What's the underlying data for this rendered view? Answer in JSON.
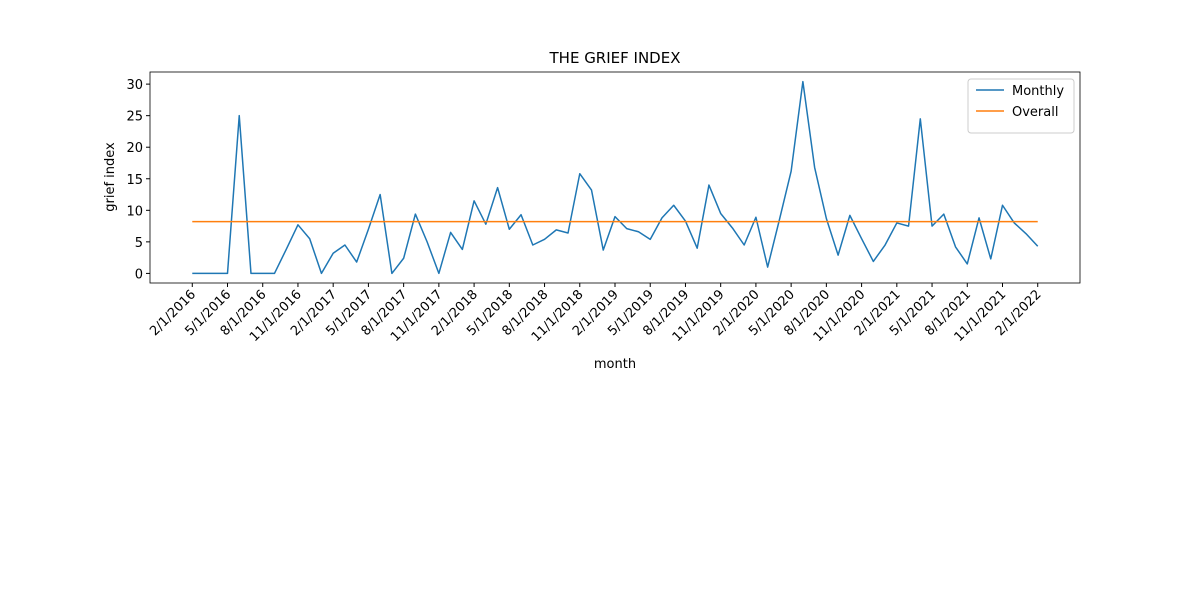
{
  "chart_data": {
    "type": "line",
    "title": "THE GRIEF INDEX",
    "x_label": "month",
    "y_label": "grief index",
    "categories": [
      "2/1/2016",
      null,
      null,
      "5/1/2016",
      null,
      null,
      "8/1/2016",
      null,
      null,
      "11/1/2016",
      null,
      null,
      "2/1/2017",
      null,
      null,
      "5/1/2017",
      null,
      null,
      "8/1/2017",
      null,
      null,
      "11/1/2017",
      null,
      null,
      "2/1/2018",
      null,
      null,
      "5/1/2018",
      null,
      null,
      "8/1/2018",
      null,
      null,
      "11/1/2018",
      null,
      null,
      "2/1/2019",
      null,
      null,
      "5/1/2019",
      null,
      null,
      "8/1/2019",
      null,
      null,
      "11/1/2019",
      null,
      null,
      "2/1/2020",
      null,
      null,
      "5/1/2020",
      null,
      null,
      "8/1/2020",
      null,
      null,
      "11/1/2020",
      null,
      null,
      "2/1/2021",
      null,
      null,
      "5/1/2021",
      null,
      null,
      "8/1/2021",
      null,
      null,
      "11/1/2021",
      null,
      null,
      "2/1/2022"
    ],
    "series": [
      {
        "name": "Monthly",
        "color": "#1f77b4",
        "values": [
          0,
          0,
          0,
          0,
          25,
          0,
          0,
          0,
          3.8,
          7.7,
          5.5,
          0,
          3.2,
          4.5,
          1.8,
          7,
          12.5,
          0,
          2.4,
          9.4,
          5,
          0,
          6.5,
          3.8,
          11.5,
          7.8,
          13.6,
          7,
          9.3,
          4.5,
          5.4,
          6.9,
          6.4,
          15.8,
          13.2,
          3.7,
          9,
          7.1,
          6.6,
          5.4,
          8.8,
          10.8,
          8.3,
          4,
          14,
          9.5,
          7.2,
          4.5,
          8.9,
          1,
          8.5,
          16.2,
          30.4,
          16.8,
          8.7,
          2.9,
          9.2,
          5.5,
          1.9,
          4.5,
          8,
          7.5,
          24.5,
          7.5,
          9.4,
          4.2,
          1.5,
          8.8,
          2.3,
          10.8,
          8,
          6.3,
          4.3
        ]
      },
      {
        "name": "Overall",
        "color": "#ff7f0e",
        "values": [
          8.2,
          8.2,
          8.2,
          8.2,
          8.2,
          8.2,
          8.2,
          8.2,
          8.2,
          8.2,
          8.2,
          8.2,
          8.2,
          8.2,
          8.2,
          8.2,
          8.2,
          8.2,
          8.2,
          8.2,
          8.2,
          8.2,
          8.2,
          8.2,
          8.2,
          8.2,
          8.2,
          8.2,
          8.2,
          8.2,
          8.2,
          8.2,
          8.2,
          8.2,
          8.2,
          8.2,
          8.2,
          8.2,
          8.2,
          8.2,
          8.2,
          8.2,
          8.2,
          8.2,
          8.2,
          8.2,
          8.2,
          8.2,
          8.2,
          8.2,
          8.2,
          8.2,
          8.2,
          8.2,
          8.2,
          8.2,
          8.2,
          8.2,
          8.2,
          8.2,
          8.2,
          8.2,
          8.2,
          8.2,
          8.2,
          8.2,
          8.2,
          8.2,
          8.2,
          8.2,
          8.2,
          8.2,
          8.2
        ]
      }
    ],
    "ylim": [
      -1.52,
      31.92
    ],
    "yticks": [
      0,
      5,
      10,
      15,
      20,
      25,
      30
    ],
    "grid": false,
    "legend": "upper right"
  }
}
